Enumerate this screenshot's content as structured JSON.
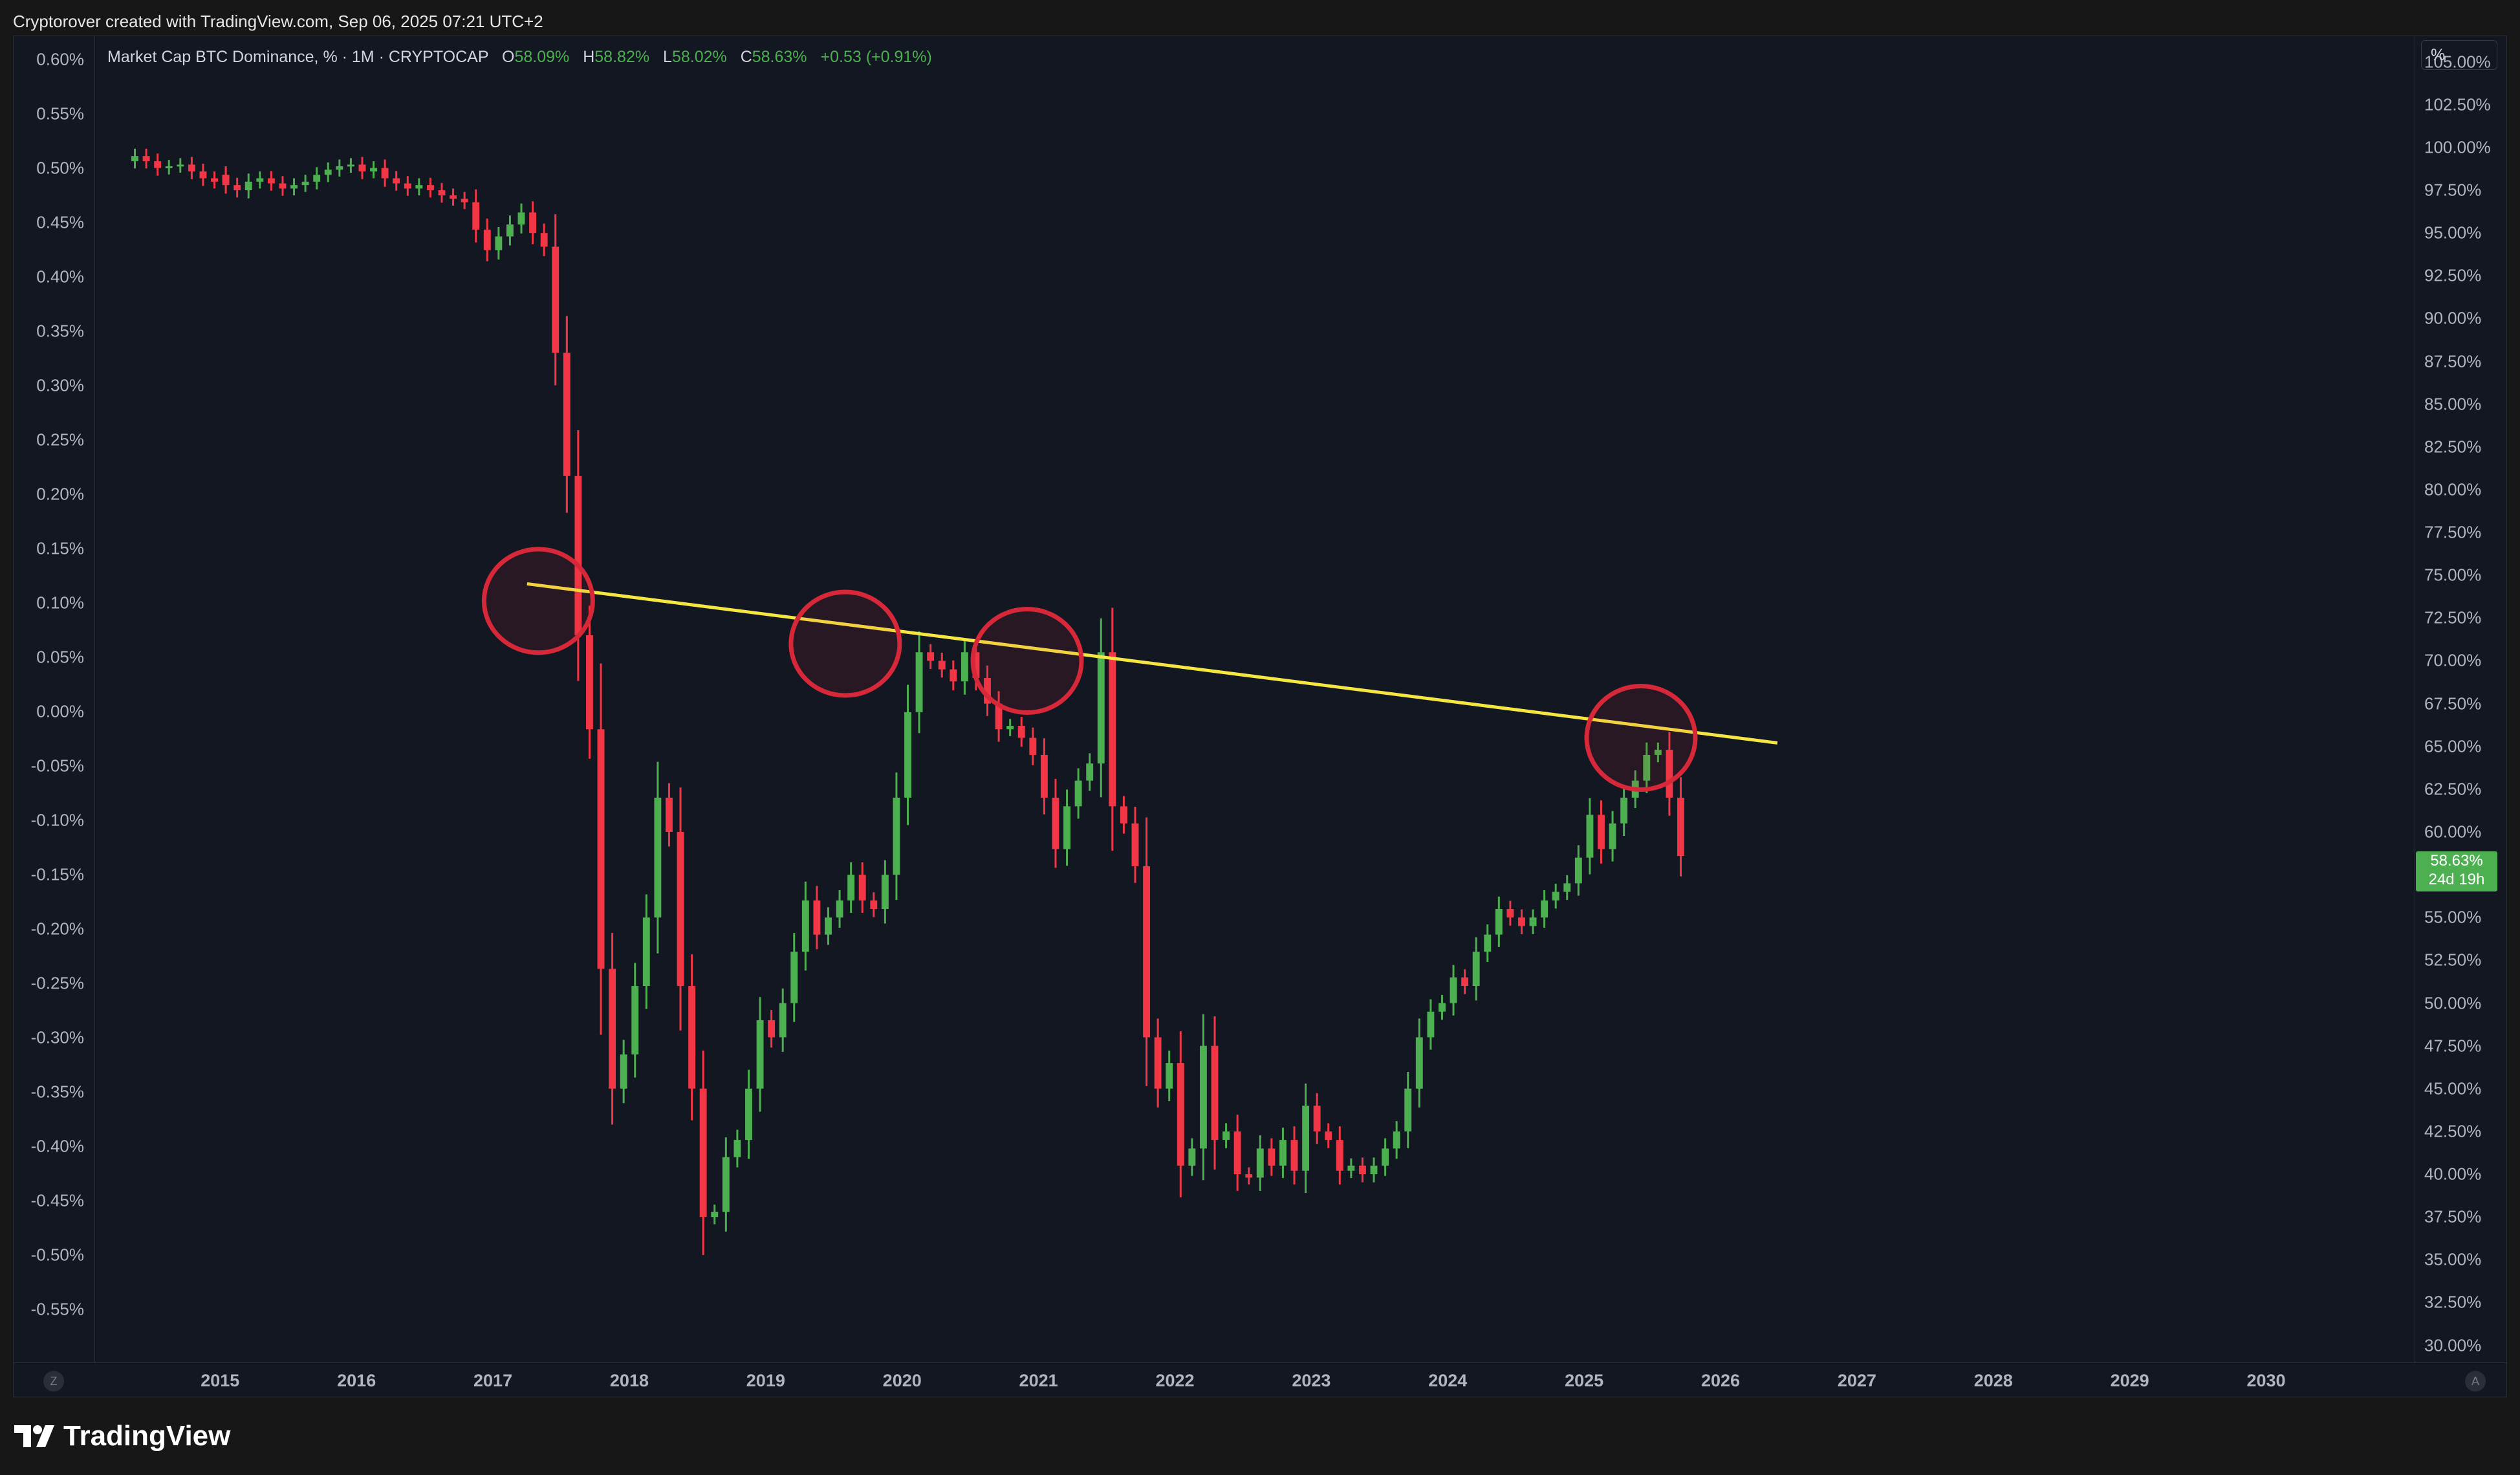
{
  "credit": "Cryptorover created with TradingView.com, Sep 06, 2025 07:21 UTC+2",
  "legend": {
    "title": "Market Cap BTC Dominance, % · 1M · CRYPTOCAP",
    "o_label": "O",
    "o_value": "58.09%",
    "h_label": "H",
    "h_value": "58.82%",
    "l_label": "L",
    "l_value": "58.02%",
    "c_label": "C",
    "c_value": "58.63%",
    "change": "+0.53 (+0.91%)"
  },
  "scale_mode": "%",
  "price_tag": {
    "value": "58.63%",
    "countdown": "24d 19h"
  },
  "corner": {
    "left": "Z",
    "right": "A"
  },
  "brand": "TradingView",
  "colors": {
    "up": "#4caf50",
    "down": "#f23645",
    "trendline": "#f5e642",
    "circle": "#d62839",
    "background": "#131722"
  },
  "chart_data": {
    "type": "candlestick",
    "title": "Market Cap BTC Dominance, %",
    "interval": "1M",
    "x_ticks": [
      "2015",
      "2016",
      "2017",
      "2018",
      "2019",
      "2020",
      "2021",
      "2022",
      "2023",
      "2024",
      "2025",
      "2026",
      "2027",
      "2028",
      "2029",
      "2030"
    ],
    "x_range": [
      "2014-02",
      "2031-02"
    ],
    "y_ticks_right": [
      "105.00%",
      "102.50%",
      "100.00%",
      "97.50%",
      "95.00%",
      "92.50%",
      "90.00%",
      "87.50%",
      "85.00%",
      "82.50%",
      "80.00%",
      "77.50%",
      "75.00%",
      "72.50%",
      "70.00%",
      "67.50%",
      "65.00%",
      "62.50%",
      "60.00%",
      "57.50%",
      "55.00%",
      "52.50%",
      "50.00%",
      "47.50%",
      "45.00%",
      "42.50%",
      "40.00%",
      "37.50%",
      "35.00%",
      "32.50%",
      "30.00%"
    ],
    "y_range_right": [
      29.0,
      106.5
    ],
    "y_ticks_left": [
      "0.60%",
      "0.55%",
      "0.50%",
      "0.45%",
      "0.40%",
      "0.35%",
      "0.30%",
      "0.25%",
      "0.20%",
      "0.15%",
      "0.10%",
      "0.05%",
      "0.00%",
      "-0.05%",
      "-0.10%",
      "-0.15%",
      "-0.20%",
      "-0.25%",
      "-0.30%",
      "-0.35%",
      "-0.40%",
      "-0.45%",
      "-0.50%",
      "-0.55%"
    ],
    "monthly_close": [
      {
        "year": 2014,
        "start_month": 5,
        "values": [
          99.5,
          99.2,
          98.8,
          98.9,
          99.0,
          98.6,
          98.2,
          98.0,
          98.4
        ]
      },
      {
        "year": 2015,
        "values": [
          97.8,
          97.5,
          98.0,
          98.2,
          97.9,
          97.6,
          97.8,
          98.0,
          98.4,
          98.7,
          98.9,
          99.0
        ]
      },
      {
        "year": 2016,
        "values": [
          98.6,
          98.8,
          98.2,
          97.9,
          97.6,
          97.8,
          97.5,
          97.2,
          97.0,
          96.8,
          95.2,
          94.0
        ]
      },
      {
        "year": 2017,
        "values": [
          94.8,
          95.5,
          96.2,
          95.0,
          94.2,
          88.0,
          80.8,
          71.5,
          66.0,
          52.0,
          45.0,
          47.0
        ]
      },
      {
        "year": 2018,
        "values": [
          51.0,
          55.0,
          62.0,
          60.0,
          51.0,
          45.0,
          37.5,
          37.8,
          41.0,
          42.0,
          45.0,
          49.0
        ]
      },
      {
        "year": 2019,
        "values": [
          48.0,
          50.0,
          53.0,
          56.0,
          54.0,
          55.0,
          56.0,
          57.5,
          56.0,
          55.5,
          57.5,
          62.0
        ]
      },
      {
        "year": 2020,
        "values": [
          67.0,
          70.5,
          70.0,
          69.5,
          68.8,
          70.5,
          69.0,
          67.5,
          66.0,
          66.2,
          65.5,
          64.5
        ]
      },
      {
        "year": 2021,
        "values": [
          62.0,
          59.0,
          61.5,
          63.0,
          64.0,
          70.5,
          61.5,
          60.5,
          58.0,
          48.0,
          45.0,
          46.5
        ]
      },
      {
        "year": 2022,
        "values": [
          40.5,
          41.5,
          47.5,
          42.0,
          42.5,
          40.0,
          39.8,
          41.5,
          40.5,
          42.0,
          40.2,
          44.0
        ]
      },
      {
        "year": 2023,
        "values": [
          42.5,
          42.0,
          40.2,
          40.5,
          40.0,
          40.5,
          41.5,
          42.5,
          45.0,
          48.0,
          49.5,
          50.0
        ]
      },
      {
        "year": 2024,
        "values": [
          51.5,
          51.0,
          53.0,
          54.0,
          55.5,
          55.0,
          54.5,
          55.0,
          56.0,
          56.5,
          57.0,
          58.5
        ]
      },
      {
        "year": 2025,
        "values": [
          61.0,
          59.0,
          60.5,
          62.0,
          63.0,
          64.5,
          64.8,
          62.0,
          58.6
        ]
      }
    ],
    "trendline": {
      "from": {
        "date": "2017-04",
        "value": 74.5
      },
      "to": {
        "date": "2026-06",
        "value": 65.2
      }
    },
    "circled_touches": [
      {
        "date": "2017-05",
        "value": 73.5
      },
      {
        "date": "2019-08",
        "value": 71.0
      },
      {
        "date": "2020-12",
        "value": 70.0
      },
      {
        "date": "2025-06",
        "value": 65.5
      }
    ]
  }
}
